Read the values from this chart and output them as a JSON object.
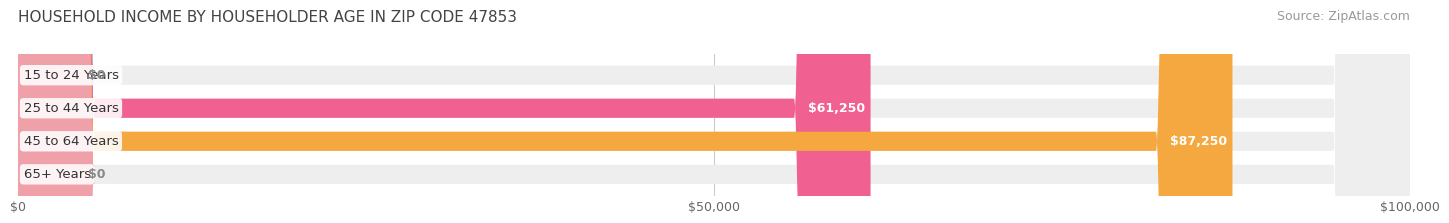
{
  "title": "HOUSEHOLD INCOME BY HOUSEHOLDER AGE IN ZIP CODE 47853",
  "source": "Source: ZipAtlas.com",
  "categories": [
    "15 to 24 Years",
    "25 to 44 Years",
    "45 to 64 Years",
    "65+ Years"
  ],
  "values": [
    0,
    61250,
    87250,
    0
  ],
  "bar_colors": [
    "#a8a8d8",
    "#f06090",
    "#f5a840",
    "#f0a0a8"
  ],
  "bar_bg_color": "#eeeeee",
  "xlim": [
    0,
    100000
  ],
  "xticks": [
    0,
    50000,
    100000
  ],
  "xticklabels": [
    "$0",
    "$50,000",
    "$100,000"
  ],
  "value_labels": [
    "$0",
    "$61,250",
    "$87,250",
    "$0"
  ],
  "value_label_colors": [
    "#888888",
    "#ffffff",
    "#ffffff",
    "#888888"
  ],
  "background_color": "#ffffff",
  "bar_height": 0.58,
  "title_fontsize": 11,
  "source_fontsize": 9,
  "cat_fontsize": 9.5,
  "tick_fontsize": 9,
  "value_fontsize": 9
}
